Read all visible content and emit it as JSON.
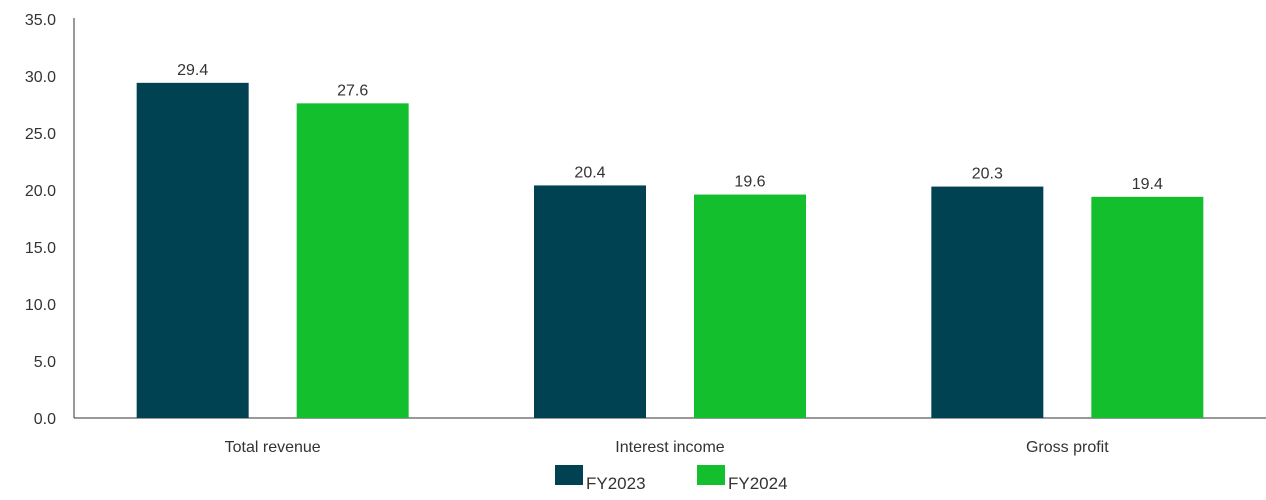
{
  "chart_data": {
    "type": "bar",
    "title": "",
    "xlabel": "",
    "ylabel": "",
    "categories": [
      "Total revenue",
      "Interest income",
      "Gross profit"
    ],
    "series": [
      {
        "name": "FY2023",
        "color": "#004152",
        "values": [
          29.4,
          20.4,
          20.3
        ],
        "labels": [
          "29.4",
          "20.4",
          "20.3"
        ]
      },
      {
        "name": "FY2024",
        "color": "#14BF2D",
        "values": [
          27.6,
          19.6,
          19.4
        ],
        "labels": [
          "27.6",
          "19.6",
          "19.4"
        ]
      }
    ],
    "ylim": [
      0,
      35
    ],
    "yticks": [
      "0.0",
      "5.0",
      "10.0",
      "15.0",
      "20.0",
      "25.0",
      "30.0",
      "35.0"
    ],
    "grid": false,
    "legend": "bottom-center"
  }
}
